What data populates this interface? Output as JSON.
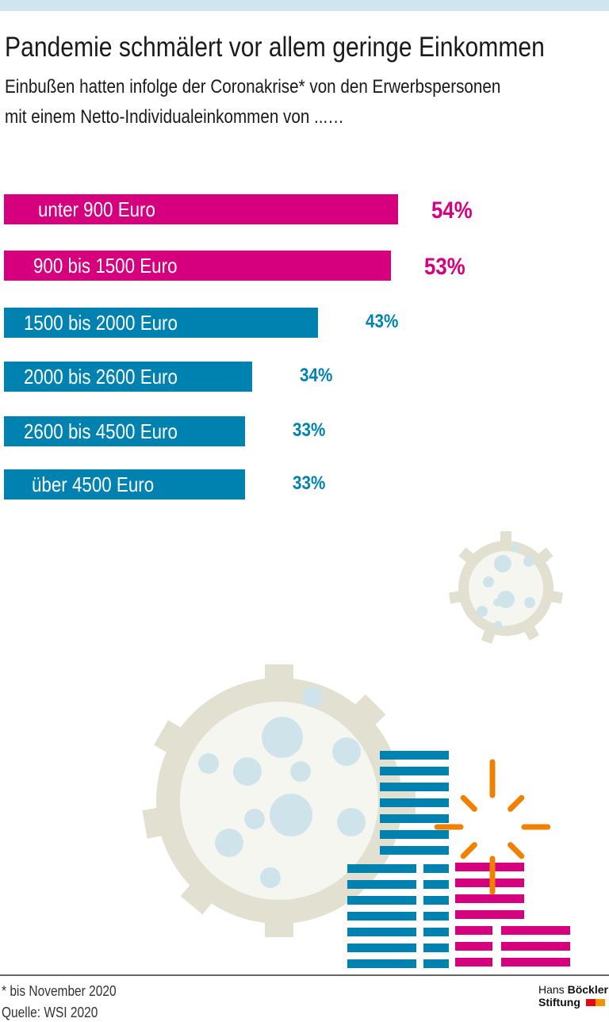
{
  "title": "Pandemie schmälert vor allem geringe Einkommen",
  "subtitle_line1": "Einbußen hatten infolge der Coronakrise* von den Erwerbspersonen",
  "subtitle_line2": "mit einem Netto-Individualeinkommen von ...…",
  "colors": {
    "high": "#d6007f",
    "normal": "#0082b0",
    "band": "#cfe6ee"
  },
  "chart_data": {
    "type": "bar",
    "orientation": "horizontal",
    "categories": [
      "unter 900 Euro",
      "900 bis 1500 Euro",
      "1500 bis 2000 Euro",
      "2000 bis 2600 Euro",
      "2600 bis 4500 Euro",
      "über 4500 Euro"
    ],
    "values": [
      54,
      53,
      43,
      34,
      33,
      33
    ],
    "labels": [
      "54%",
      "53%",
      "43%",
      "34%",
      "33%",
      "33%"
    ],
    "unit": "%",
    "grid": false
  },
  "footnote": "* bis November 2020",
  "source": "Quelle: WSI 2020",
  "logo": {
    "line1a": "Hans",
    "line1b": "Böckler",
    "line2": "Stiftung"
  }
}
